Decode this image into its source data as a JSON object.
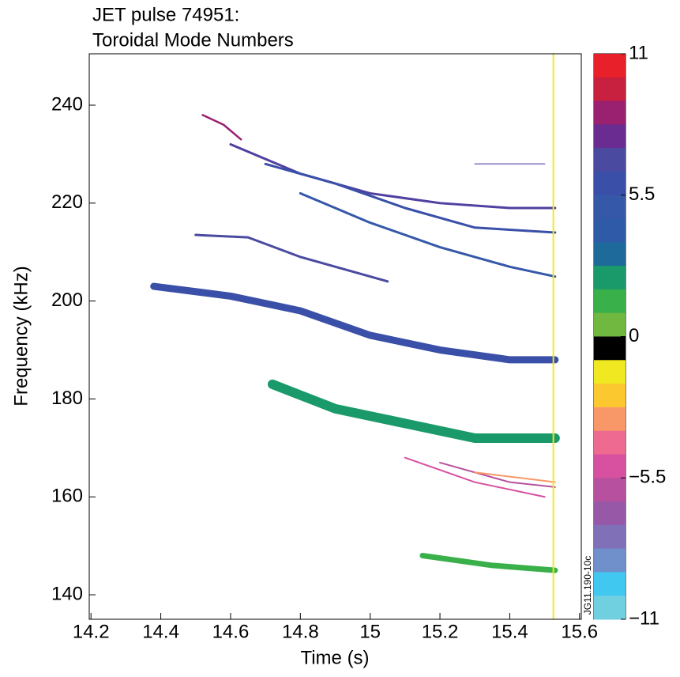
{
  "chart_data": {
    "type": "spectrogram",
    "title": [
      "JET pulse 74951:",
      "Toroidal Mode Numbers"
    ],
    "xlabel": "Time (s)",
    "ylabel": "Frequency (kHz)",
    "annotation": "JG11.190-10c",
    "xlim": [
      14.195,
      15.605
    ],
    "ylim": [
      135,
      250.5
    ],
    "xticks": [
      14.2,
      14.4,
      14.6,
      14.8,
      15.0,
      15.2,
      15.4,
      15.6
    ],
    "yticks": [
      140,
      160,
      180,
      200,
      220,
      240
    ],
    "series": [
      {
        "color": "#3a50a8",
        "x": [
          14.38,
          14.6,
          14.8,
          15.0,
          15.2,
          15.4,
          15.53
        ],
        "values": [
          203,
          201,
          198,
          193,
          190,
          188,
          188
        ]
      },
      {
        "color": "#1a9a6a",
        "x": [
          14.72,
          14.9,
          15.1,
          15.3,
          15.53
        ],
        "values": [
          183,
          178,
          175,
          172,
          172
        ]
      },
      {
        "color": "#4a4aa0",
        "x": [
          14.5,
          14.65,
          14.8,
          14.95,
          15.05
        ],
        "values": [
          213.5,
          213,
          209,
          206,
          204
        ]
      },
      {
        "color": "#5040a0",
        "x": [
          14.6,
          14.8,
          15.0,
          15.2,
          15.4,
          15.53
        ],
        "values": [
          232,
          226,
          222,
          220,
          219,
          219
        ]
      },
      {
        "color": "#3a50a8",
        "x": [
          14.7,
          14.9,
          15.1,
          15.3,
          15.53
        ],
        "values": [
          228,
          224,
          219,
          215,
          214
        ]
      },
      {
        "color": "#3558a8",
        "x": [
          14.8,
          15.0,
          15.2,
          15.4,
          15.53
        ],
        "values": [
          222,
          216,
          211,
          207,
          205
        ]
      },
      {
        "color": "#9a2070",
        "x": [
          14.52,
          14.58,
          14.63
        ],
        "values": [
          238,
          236,
          233
        ]
      },
      {
        "color": "#d850a0",
        "x": [
          15.1,
          15.3,
          15.5
        ],
        "values": [
          168,
          163,
          160
        ]
      },
      {
        "color": "#b850a0",
        "x": [
          15.2,
          15.4,
          15.53
        ],
        "values": [
          167,
          163,
          162
        ]
      },
      {
        "color": "#f89868",
        "x": [
          15.3,
          15.53
        ],
        "values": [
          165,
          163
        ]
      },
      {
        "color": "#3ab04a",
        "x": [
          15.15,
          15.35,
          15.53
        ],
        "values": [
          148,
          146,
          145
        ]
      },
      {
        "color": "#8070b8",
        "x": [
          15.3,
          15.5
        ],
        "values": [
          228,
          228
        ]
      },
      {
        "color": "#f0e820",
        "x": [
          15.525,
          15.525
        ],
        "values": [
          135,
          250.5
        ]
      }
    ],
    "colorbar": {
      "lim": [
        -11,
        11
      ],
      "ticks": [
        11,
        5.5,
        0,
        {
          "value": -5.5,
          "label": "−5.5"
        },
        {
          "value": -11,
          "label": "−11"
        }
      ],
      "colors": [
        "#e8202a",
        "#c8203f",
        "#9a2070",
        "#6a2c90",
        "#4a4aa0",
        "#3a50a8",
        "#3558a8",
        "#2f5aa8",
        "#1e6a9a",
        "#1a9a6a",
        "#3ab04a",
        "#70b840",
        "#000000",
        "#f0e820",
        "#fcc830",
        "#f89868",
        "#ee6a90",
        "#d850a0",
        "#b850a0",
        "#9858a8",
        "#8070b8",
        "#7090cc",
        "#40c8f0",
        "#70d0e0"
      ]
    }
  }
}
